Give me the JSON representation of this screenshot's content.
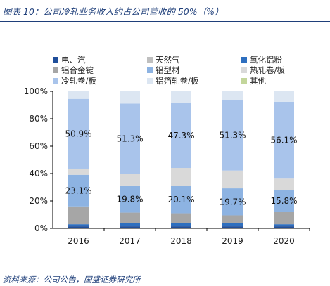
{
  "title": "图表 10：公司冷轧业务收入约占公司营收的 50%（%）",
  "source": "资料来源：公司公告，国盛证券研究所",
  "colors": {
    "accent": "#1f3f7a"
  },
  "chart_data": {
    "type": "bar",
    "stacked": true,
    "percent": true,
    "categories": [
      "2016",
      "2017",
      "2018",
      "2019",
      "2020"
    ],
    "ylim": [
      0,
      100
    ],
    "yticks": [
      "0%",
      "20%",
      "40%",
      "60%",
      "80%",
      "100%"
    ],
    "grid": false,
    "legend_position": "top",
    "series": [
      {
        "name": "电、汽",
        "color": "#1f4e9a",
        "values": [
          1.5,
          1.5,
          1.5,
          1.5,
          1.5
        ]
      },
      {
        "name": "天然气",
        "color": "#bfbfbf",
        "values": [
          0.5,
          0.5,
          0.5,
          0.5,
          0.5
        ]
      },
      {
        "name": "氧化铝粉",
        "color": "#2e6fbf",
        "values": [
          1.0,
          2.0,
          2.0,
          2.0,
          1.0
        ]
      },
      {
        "name": "铝合金锭",
        "color": "#a6a6a6",
        "values": [
          13.0,
          7.5,
          7.0,
          5.5,
          9.0
        ]
      },
      {
        "name": "铝型材",
        "color": "#8db3e2",
        "values": [
          23.1,
          19.8,
          20.1,
          19.7,
          15.8
        ]
      },
      {
        "name": "热轧卷/板",
        "color": "#d9d9d9",
        "values": [
          4.5,
          8.5,
          13.0,
          13.0,
          8.5
        ]
      },
      {
        "name": "冷轧卷/板",
        "color": "#a9c4eb",
        "values": [
          50.9,
          51.3,
          47.3,
          51.3,
          56.1
        ]
      },
      {
        "name": "铝箔轧卷/板",
        "color": "#dce6f2",
        "values": [
          5.5,
          8.9,
          8.6,
          6.5,
          7.6
        ]
      },
      {
        "name": "其他",
        "color": "#c3d69b",
        "values": [
          0,
          0,
          0,
          0,
          0
        ]
      }
    ],
    "data_labels": {
      "铝型材": [
        "23.1%",
        "19.8%",
        "20.1%",
        "19.7%",
        "15.8%"
      ],
      "冷轧卷/板": [
        "50.9%",
        "51.3%",
        "47.3%",
        "51.3%",
        "56.1%"
      ]
    }
  }
}
